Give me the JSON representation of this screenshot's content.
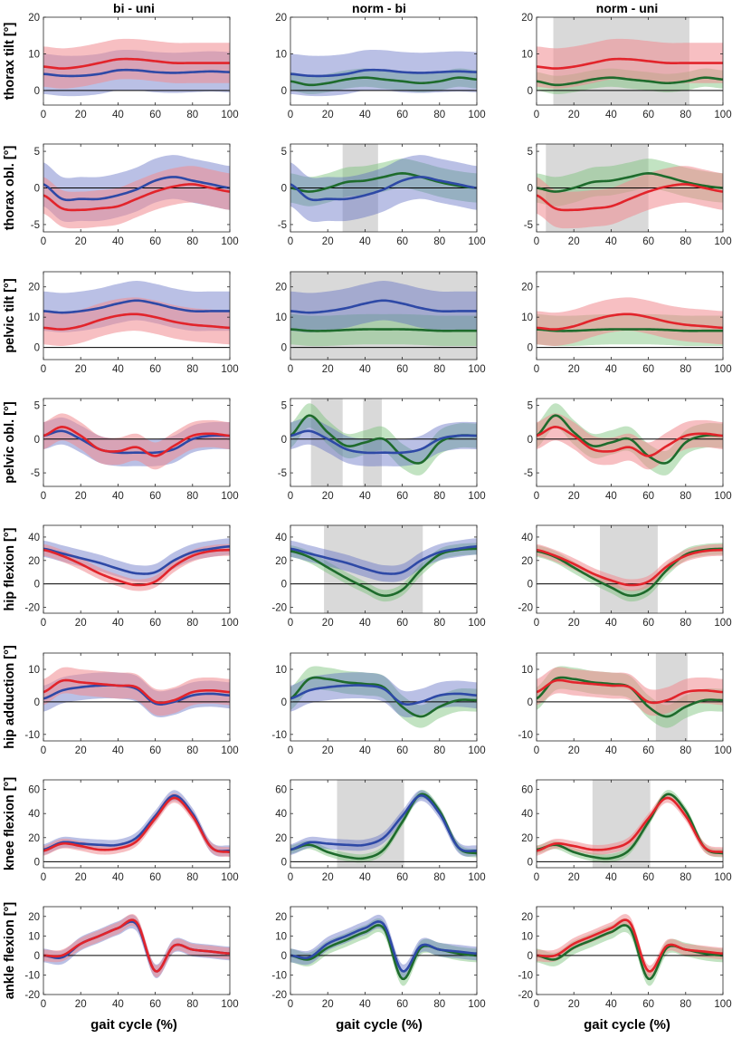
{
  "chart_data": {
    "type": "line",
    "layout": "small-multiples grid",
    "x_label": "gait cycle (%)",
    "x_range": [
      0,
      100
    ],
    "x_ticks": [
      0,
      20,
      40,
      60,
      80,
      100
    ],
    "columns": [
      {
        "title": "bi - uni",
        "series": [
          "bi",
          "uni"
        ]
      },
      {
        "title": "norm - bi",
        "series": [
          "norm",
          "bi"
        ]
      },
      {
        "title": "norm - uni",
        "series": [
          "norm",
          "uni"
        ]
      }
    ],
    "series_colors": {
      "bi": {
        "line": "#2e49a6",
        "band": "#5a6ac0",
        "band_opacity": 0.42
      },
      "uni": {
        "line": "#e2242b",
        "band": "#f08a90",
        "band_opacity": 0.55
      },
      "norm": {
        "line": "#1e6b2c",
        "band": "#78c078",
        "band_opacity": 0.45
      }
    },
    "significance_color": "#d9d9d9",
    "x": [
      0,
      10,
      20,
      30,
      40,
      50,
      60,
      70,
      80,
      90,
      100
    ],
    "rows": [
      {
        "label": "thorax tilt [°]",
        "ylim": [
          -4,
          20
        ],
        "yticks": [
          0,
          10,
          20
        ],
        "means": {
          "bi": [
            4.5,
            4.0,
            4.0,
            4.5,
            5.5,
            5.5,
            5.0,
            4.8,
            5.0,
            5.2,
            5.0
          ],
          "uni": [
            6.5,
            6.0,
            6.5,
            7.5,
            8.5,
            8.5,
            8.0,
            7.5,
            7.5,
            7.5,
            7.5
          ],
          "norm": [
            2.5,
            1.5,
            2.0,
            3.0,
            3.5,
            3.0,
            2.5,
            2.0,
            2.5,
            3.5,
            3.0
          ]
        },
        "sd": {
          "bi": 5.5,
          "uni": 5.5,
          "norm": 2.5
        },
        "significance": [
          [],
          [],
          [
            [
              9,
              82
            ]
          ]
        ]
      },
      {
        "label": "thorax obl. [°]",
        "ylim": [
          -6,
          6
        ],
        "yticks": [
          -5,
          0,
          5
        ],
        "means": {
          "bi": [
            0.5,
            -1.5,
            -1.5,
            -1.5,
            -1.0,
            -0.2,
            1.0,
            1.5,
            1.0,
            0.5,
            0.0
          ],
          "uni": [
            -1.0,
            -2.8,
            -3.0,
            -2.8,
            -2.5,
            -1.5,
            -0.5,
            0.2,
            0.5,
            0.0,
            -0.5
          ],
          "norm": [
            0.0,
            -0.5,
            0.0,
            0.8,
            1.0,
            1.5,
            2.0,
            1.5,
            0.8,
            0.3,
            0.0
          ]
        },
        "sd": {
          "bi": 3.0,
          "uni": 2.5,
          "norm": 2.0
        },
        "significance": [
          [],
          [
            [
              28,
              47
            ]
          ],
          [
            [
              5,
              60
            ]
          ]
        ]
      },
      {
        "label": "pelvic tilt [°]",
        "ylim": [
          -4,
          25
        ],
        "yticks": [
          0,
          10,
          20
        ],
        "means": {
          "bi": [
            12,
            11.5,
            12,
            13,
            14.5,
            15.5,
            14.5,
            13,
            12,
            12,
            12
          ],
          "uni": [
            6.5,
            6.0,
            7.0,
            9.0,
            10.5,
            11.0,
            10.0,
            8.5,
            7.5,
            7.0,
            6.5
          ],
          "norm": [
            6.0,
            5.5,
            5.5,
            5.8,
            6.0,
            6.0,
            6.0,
            5.8,
            5.5,
            5.5,
            5.5
          ]
        },
        "sd": {
          "bi": 6.5,
          "uni": 5.5,
          "norm": 5.0
        },
        "significance": [
          [],
          [
            [
              0,
              100
            ]
          ],
          []
        ]
      },
      {
        "label": "pelvic obl. [°]",
        "ylim": [
          -7,
          6
        ],
        "yticks": [
          -5,
          0,
          5
        ],
        "means": {
          "bi": [
            0.5,
            1.2,
            0.0,
            -1.5,
            -2.0,
            -2.0,
            -2.0,
            -1.5,
            0.0,
            0.5,
            0.5
          ],
          "uni": [
            0.5,
            1.8,
            0.5,
            -1.5,
            -1.8,
            -1.2,
            -2.5,
            -1.0,
            0.5,
            0.8,
            0.5
          ],
          "norm": [
            0.5,
            3.5,
            1.0,
            -1.0,
            -0.5,
            0.0,
            -2.5,
            -3.5,
            -0.5,
            0.5,
            0.5
          ]
        },
        "sd": {
          "bi": 2.0,
          "uni": 2.0,
          "norm": 1.8
        },
        "significance": [
          [],
          [
            [
              11,
              28
            ],
            [
              39,
              49
            ]
          ],
          []
        ]
      },
      {
        "label": "hip flexion [°]",
        "ylim": [
          -25,
          50
        ],
        "yticks": [
          -20,
          0,
          20,
          40
        ],
        "means": {
          "bi": [
            30,
            26,
            22,
            18,
            13,
            9,
            10,
            20,
            27,
            30,
            32
          ],
          "uni": [
            29,
            24,
            17,
            9,
            3,
            -1,
            2,
            15,
            24,
            28,
            29
          ],
          "norm": [
            28,
            23,
            14,
            5,
            -3,
            -10,
            -5,
            12,
            25,
            29,
            30
          ]
        },
        "sd": {
          "bi": 7.0,
          "uni": 5.0,
          "norm": 5.0
        },
        "significance": [
          [],
          [
            [
              18,
              71
            ]
          ],
          [
            [
              34,
              65
            ]
          ]
        ]
      },
      {
        "label": "hip adduction [°]",
        "ylim": [
          -12,
          15
        ],
        "yticks": [
          -10,
          0,
          10
        ],
        "means": {
          "bi": [
            1.0,
            3.5,
            4.5,
            5.0,
            5.0,
            4.0,
            -0.5,
            0.0,
            2.0,
            2.5,
            2.0
          ],
          "uni": [
            3.0,
            6.5,
            6.0,
            5.5,
            5.0,
            4.5,
            0.0,
            0.5,
            3.0,
            3.5,
            3.0
          ],
          "norm": [
            1.0,
            7.0,
            7.0,
            6.0,
            5.5,
            4.5,
            -1.5,
            -4.5,
            -1.5,
            0.5,
            0.5
          ]
        },
        "sd": {
          "bi": 4.0,
          "uni": 4.0,
          "norm": 3.5
        },
        "significance": [
          [],
          [],
          [
            [
              64,
              81
            ]
          ]
        ]
      },
      {
        "label": "knee flexion [°]",
        "ylim": [
          -5,
          68
        ],
        "yticks": [
          0,
          20,
          40,
          60
        ],
        "means": {
          "bi": [
            10,
            16,
            15,
            14,
            14,
            20,
            38,
            55,
            40,
            12,
            9
          ],
          "uni": [
            9,
            15,
            13,
            10,
            11,
            17,
            36,
            53,
            38,
            12,
            8
          ],
          "norm": [
            10,
            14,
            8,
            4,
            3,
            10,
            33,
            56,
            42,
            12,
            7
          ]
        },
        "sd": {
          "bi": 4.5,
          "uni": 4.0,
          "norm": 3.5
        },
        "significance": [
          [],
          [
            [
              25,
              61
            ]
          ],
          [
            [
              30,
              61
            ]
          ]
        ]
      },
      {
        "label": "ankle flexion [°]",
        "ylim": [
          -20,
          25
        ],
        "yticks": [
          -20,
          -10,
          0,
          10,
          20
        ],
        "means": {
          "bi": [
            0,
            -1,
            6,
            10,
            14,
            16,
            -8,
            5,
            3,
            2,
            1
          ],
          "uni": [
            0,
            0,
            6,
            10,
            14,
            17,
            -8,
            5,
            3,
            2,
            1
          ],
          "norm": [
            0,
            -2,
            4,
            8,
            12,
            14,
            -12,
            4,
            3,
            1,
            0
          ]
        },
        "sd": {
          "bi": 3.5,
          "uni": 3.0,
          "norm": 3.5
        },
        "significance": [
          [],
          [],
          []
        ]
      }
    ]
  }
}
